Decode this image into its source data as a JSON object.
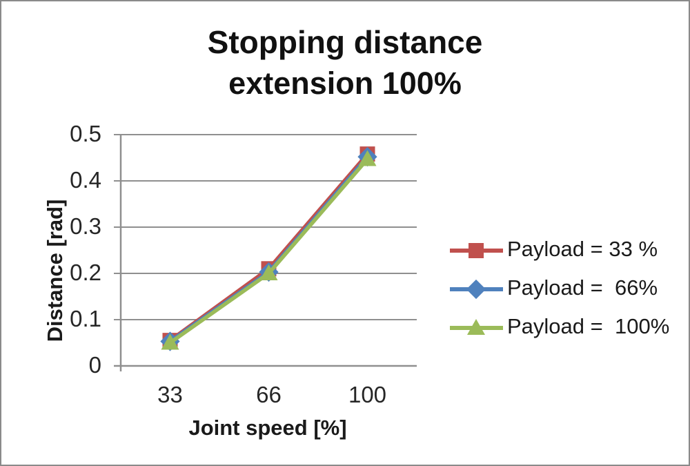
{
  "page": {
    "background": "#ffffff",
    "border_color": "#8a8a8a"
  },
  "chart_data": {
    "type": "line",
    "title": "Stopping distance",
    "subtitle": "extension 100%",
    "xlabel": "Joint speed [%]",
    "ylabel": "Distance [rad]",
    "categories": [
      "33",
      "66",
      "100"
    ],
    "series": [
      {
        "name": "Payload = 33 %",
        "color": "#C0504D",
        "marker": "square",
        "values": [
          0.055,
          0.21,
          0.458
        ]
      },
      {
        "name": "Payload =  66%",
        "color": "#4F81BD",
        "marker": "diamond",
        "values": [
          0.053,
          0.203,
          0.452
        ]
      },
      {
        "name": "Payload =  100%",
        "color": "#9BBB59",
        "marker": "triangle",
        "values": [
          0.05,
          0.2,
          0.447
        ]
      }
    ],
    "ylim": [
      0,
      0.5
    ],
    "yticks": [
      "0",
      "0.1",
      "0.2",
      "0.3",
      "0.4",
      "0.5"
    ],
    "grid": "horizontal",
    "gridline_color": "#8f8f8f",
    "axis_color": "#8f8f8f",
    "legend_position": "right",
    "text_color": "#1a1a1a"
  }
}
